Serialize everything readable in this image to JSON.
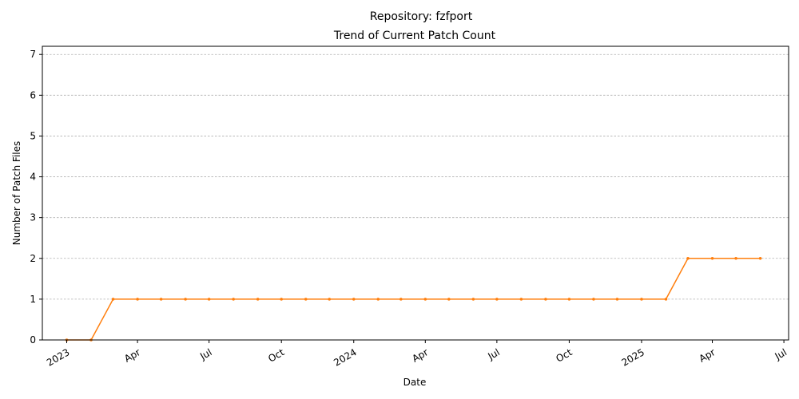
{
  "chart_data": {
    "type": "line",
    "title": "Repository: fzfport",
    "subtitle": "Trend of Current Patch Count",
    "xlabel": "Date",
    "ylabel": "Number of Patch Files",
    "xlim": [
      "2022-12-01",
      "2025-07-07"
    ],
    "ylim": [
      0,
      7.2
    ],
    "yticks": [
      0,
      1,
      2,
      3,
      4,
      5,
      6,
      7
    ],
    "xticks": [
      {
        "date": "2023-01-01",
        "label": "2023"
      },
      {
        "date": "2023-04-01",
        "label": "Apr"
      },
      {
        "date": "2023-07-01",
        "label": "Jul"
      },
      {
        "date": "2023-10-01",
        "label": "Oct"
      },
      {
        "date": "2024-01-01",
        "label": "2024"
      },
      {
        "date": "2024-04-01",
        "label": "Apr"
      },
      {
        "date": "2024-07-01",
        "label": "Jul"
      },
      {
        "date": "2024-10-01",
        "label": "Oct"
      },
      {
        "date": "2025-01-01",
        "label": "2025"
      },
      {
        "date": "2025-04-01",
        "label": "Apr"
      },
      {
        "date": "2025-07-01",
        "label": "Jul"
      }
    ],
    "grid": "y-dashed",
    "series": [
      {
        "color": "#ff7f0e",
        "points": [
          [
            "2023-01-01",
            0
          ],
          [
            "2023-02-01",
            0
          ],
          [
            "2023-03-01",
            1
          ],
          [
            "2023-04-01",
            1
          ],
          [
            "2023-05-01",
            1
          ],
          [
            "2023-06-01",
            1
          ],
          [
            "2023-07-01",
            1
          ],
          [
            "2023-08-01",
            1
          ],
          [
            "2023-09-01",
            1
          ],
          [
            "2023-10-01",
            1
          ],
          [
            "2023-11-01",
            1
          ],
          [
            "2023-12-01",
            1
          ],
          [
            "2024-01-01",
            1
          ],
          [
            "2024-02-01",
            1
          ],
          [
            "2024-03-01",
            1
          ],
          [
            "2024-04-01",
            1
          ],
          [
            "2024-05-01",
            1
          ],
          [
            "2024-06-01",
            1
          ],
          [
            "2024-07-01",
            1
          ],
          [
            "2024-08-01",
            1
          ],
          [
            "2024-09-01",
            1
          ],
          [
            "2024-10-01",
            1
          ],
          [
            "2024-11-01",
            1
          ],
          [
            "2024-12-01",
            1
          ],
          [
            "2025-01-01",
            1
          ],
          [
            "2025-02-01",
            1
          ],
          [
            "2025-03-01",
            2
          ],
          [
            "2025-04-01",
            2
          ],
          [
            "2025-05-01",
            2
          ],
          [
            "2025-06-01",
            2
          ]
        ]
      }
    ]
  }
}
